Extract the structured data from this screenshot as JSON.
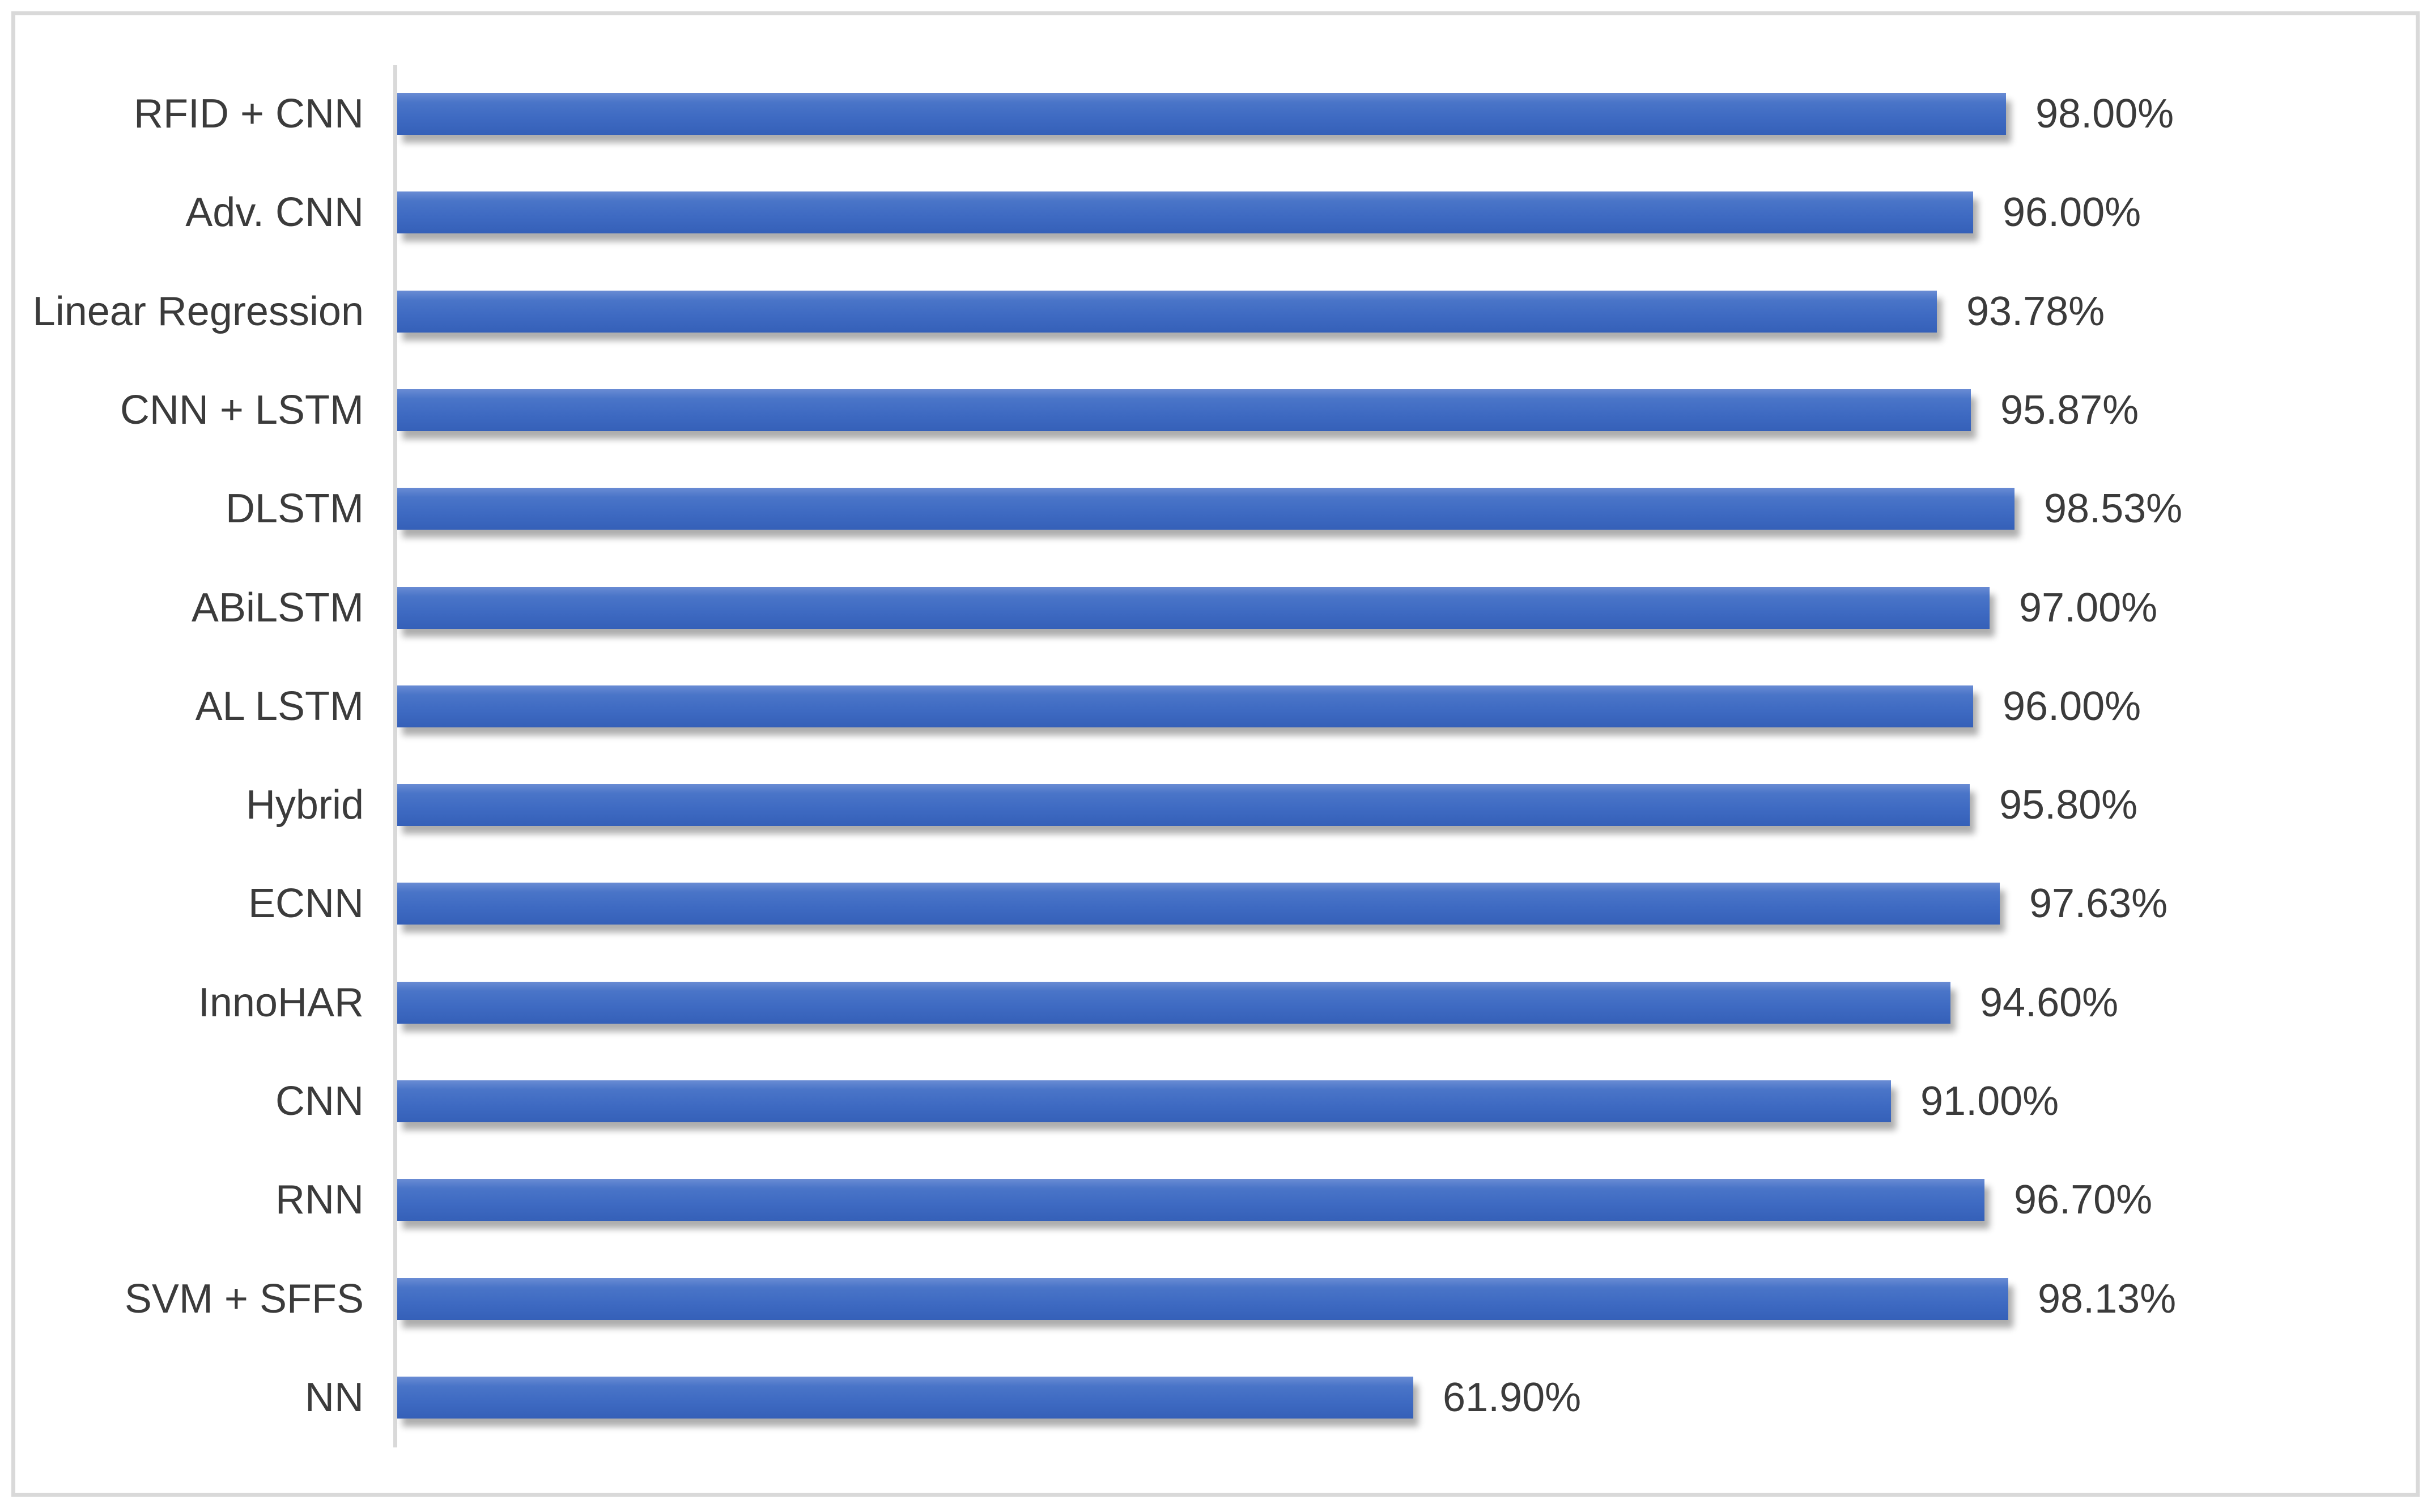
{
  "chart_data": {
    "type": "bar",
    "orientation": "horizontal",
    "title": "",
    "xlabel": "",
    "ylabel": "",
    "xlim": [
      0,
      100
    ],
    "grid": false,
    "legend": false,
    "value_suffix": "%",
    "categories": [
      "RFID + CNN",
      "Adv. CNN",
      "Linear Regression",
      "CNN + LSTM",
      "DLSTM",
      "ABiLSTM",
      "AL LSTM",
      "Hybrid",
      "ECNN",
      "InnoHAR",
      "CNN",
      "RNN",
      "SVM + SFFS",
      "NN"
    ],
    "values": [
      98.0,
      96.0,
      93.78,
      95.87,
      98.53,
      97.0,
      96.0,
      95.8,
      97.63,
      94.6,
      91.0,
      96.7,
      98.13,
      61.9
    ],
    "value_labels": [
      "98.00%",
      "96.00%",
      "93.78%",
      "95.87%",
      "98.53%",
      "97.00%",
      "96.00%",
      "95.80%",
      "97.63%",
      "94.60%",
      "91.00%",
      "96.70%",
      "98.13%",
      "61.90%"
    ],
    "colors": {
      "bar_gradient_top": "#6A8CD4",
      "bar_gradient_upper": "#4A75C8",
      "bar_gradient_mid": "#3E6AC2",
      "bar_gradient_bottom": "#3560B8",
      "bar_shadow": "rgba(0,0,0,0.32)",
      "axis_line": "#D9D9D9",
      "frame_border": "#D9D9D9",
      "label_text": "#3B3B3B",
      "background": "#FFFFFF"
    }
  }
}
